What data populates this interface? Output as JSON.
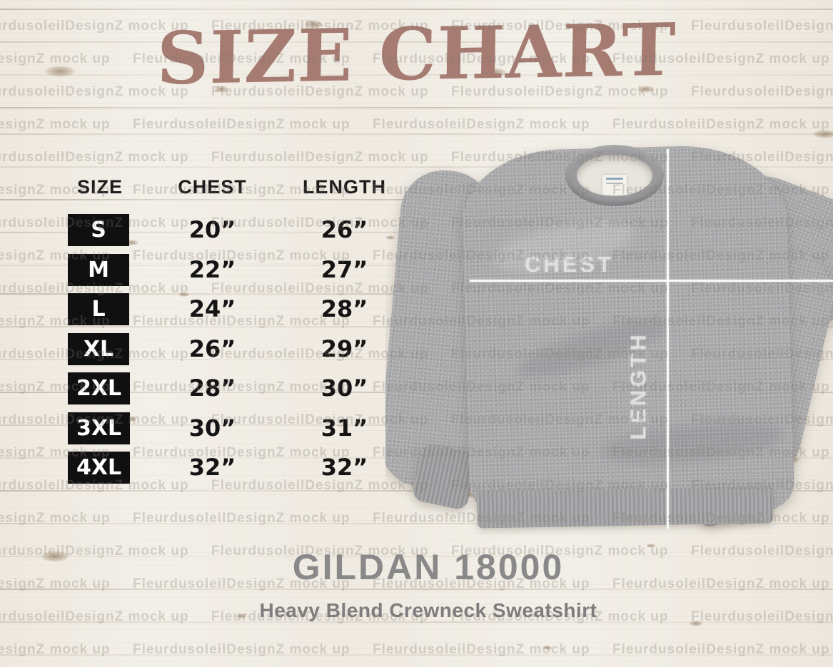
{
  "title": "SIZE CHART",
  "table": {
    "headers": [
      "SIZE",
      "CHEST",
      "LENGTH"
    ],
    "rows": [
      {
        "size": "S",
        "chest": "20”",
        "length": "26”"
      },
      {
        "size": "M",
        "chest": "22”",
        "length": "27”"
      },
      {
        "size": "L",
        "chest": "24”",
        "length": "28”"
      },
      {
        "size": "XL",
        "chest": "26”",
        "length": "29”"
      },
      {
        "size": "2XL",
        "chest": "28”",
        "length": "30”"
      },
      {
        "size": "3XL",
        "chest": "30”",
        "length": "31”"
      },
      {
        "size": "4XL",
        "chest": "32”",
        "length": "32”"
      }
    ]
  },
  "mockup": {
    "chest_label": "CHEST",
    "length_label": "LENGTH"
  },
  "footer": {
    "product_name": "GILDAN 18000",
    "product_description": "Heavy Blend Crewneck Sweatshirt"
  },
  "watermark": {
    "text": "FleurdusoleilDesignZ mock up"
  },
  "colors": {
    "title": "#a67b71",
    "badge_bg": "#101010",
    "badge_text": "#ffffff",
    "table_text": "#141414",
    "footer_text": "#898989",
    "sweatshirt_gray": "#a9a9ab",
    "measure_line": "#ffffff",
    "wood_bg": "#f3f0e9"
  },
  "chart_data": {
    "type": "table",
    "title": "SIZE CHART",
    "columns": [
      "SIZE",
      "CHEST",
      "LENGTH"
    ],
    "rows": [
      [
        "S",
        "20”",
        "26”"
      ],
      [
        "M",
        "22”",
        "27”"
      ],
      [
        "L",
        "24”",
        "28”"
      ],
      [
        "XL",
        "26”",
        "29”"
      ],
      [
        "2XL",
        "28”",
        "30”"
      ],
      [
        "3XL",
        "30”",
        "31”"
      ],
      [
        "4XL",
        "32”",
        "32”"
      ]
    ],
    "units": "inches",
    "notes": "Gildan 18000 Heavy Blend Crewneck Sweatshirt size chart"
  }
}
